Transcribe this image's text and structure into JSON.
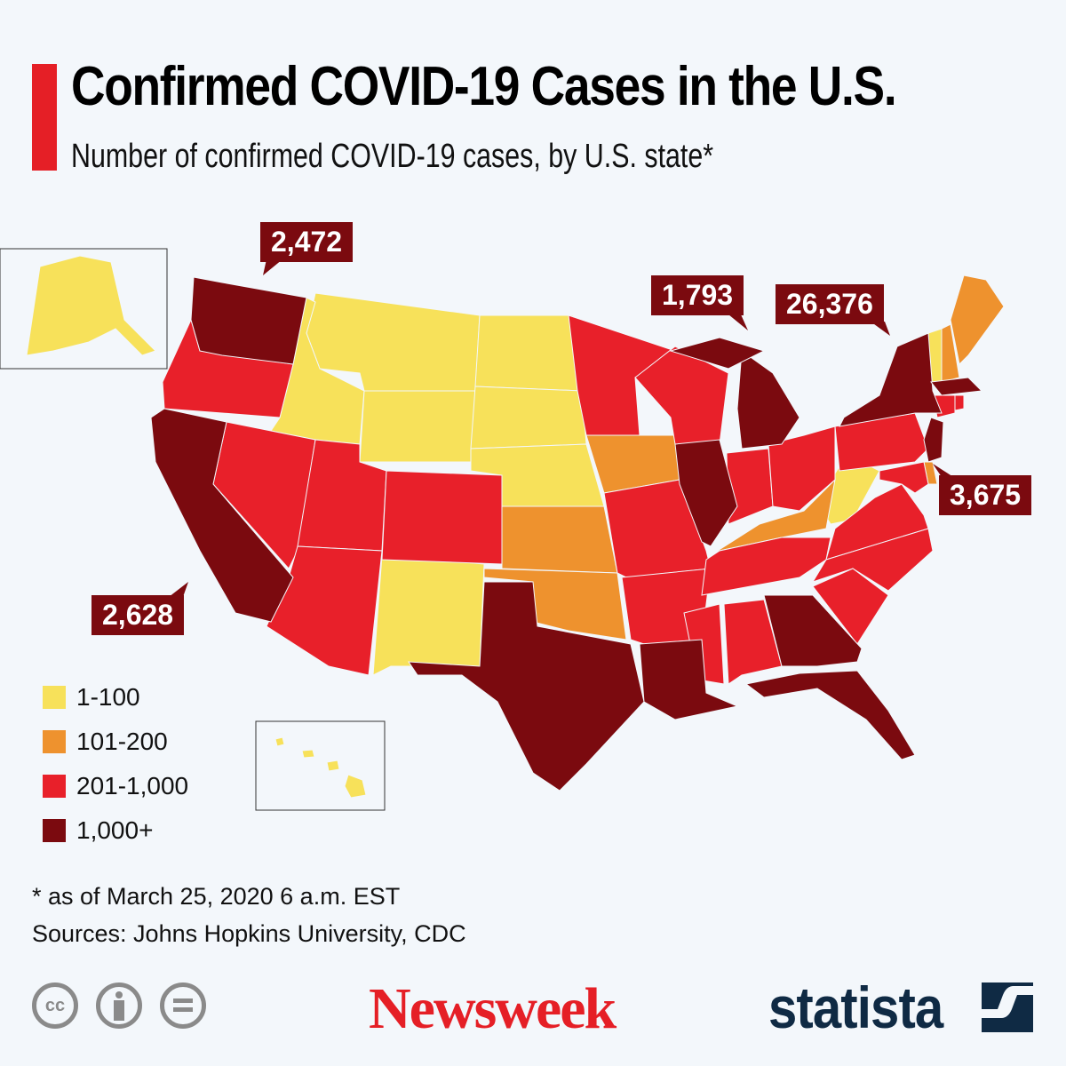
{
  "header": {
    "title": "Confirmed COVID-19 Cases in the U.S.",
    "subtitle": "Number of confirmed COVID-19 cases, by U.S. state*"
  },
  "colors": {
    "accent": "#e51f26",
    "background": "#f3f7fb",
    "c1": "#f7e15a",
    "c2": "#ee922e",
    "c3": "#e8202a",
    "c4": "#7b0a0f"
  },
  "legend": [
    {
      "label": "1-100",
      "color": "#f7e15a"
    },
    {
      "label": "101-200",
      "color": "#ee922e"
    },
    {
      "label": "201-1,000",
      "color": "#e8202a"
    },
    {
      "label": "1,000+",
      "color": "#7b0a0f"
    }
  ],
  "states": {
    "AK": 0,
    "HI": 0,
    "MT": 0,
    "ID": 0,
    "WY": 0,
    "ND": 0,
    "SD": 0,
    "NE": 0,
    "NM": 0,
    "WV": 0,
    "VT": 0,
    "ME": 1,
    "NH": 1,
    "IA": 1,
    "KS": 1,
    "OK": 1,
    "KY": 1,
    "DE": 1,
    "OR": 2,
    "NV": 2,
    "UT": 2,
    "AZ": 2,
    "CO": 2,
    "MN": 2,
    "WI": 2,
    "MO": 2,
    "AR": 2,
    "MS": 2,
    "AL": 2,
    "TN": 2,
    "IN": 2,
    "OH": 2,
    "PA": 2,
    "VA": 2,
    "NC": 2,
    "SC": 2,
    "MD": 2,
    "CT": 2,
    "RI": 2,
    "WA": 3,
    "CA": 3,
    "TX": 3,
    "LA": 3,
    "IL": 3,
    "MI": 3,
    "NY": 3,
    "NJ": 3,
    "MA": 3,
    "GA": 3,
    "FL": 3
  },
  "callouts": {
    "WA": "2,472",
    "MI": "1,793",
    "NY": "26,376",
    "NJ": "3,675",
    "CA": "2,628"
  },
  "footer": {
    "note": "* as of March 25, 2020 6 a.m. EST",
    "sources": "Sources: Johns Hopkins University, CDC",
    "newsweek": "Newsweek",
    "statista": "statista",
    "cc": "cc"
  }
}
